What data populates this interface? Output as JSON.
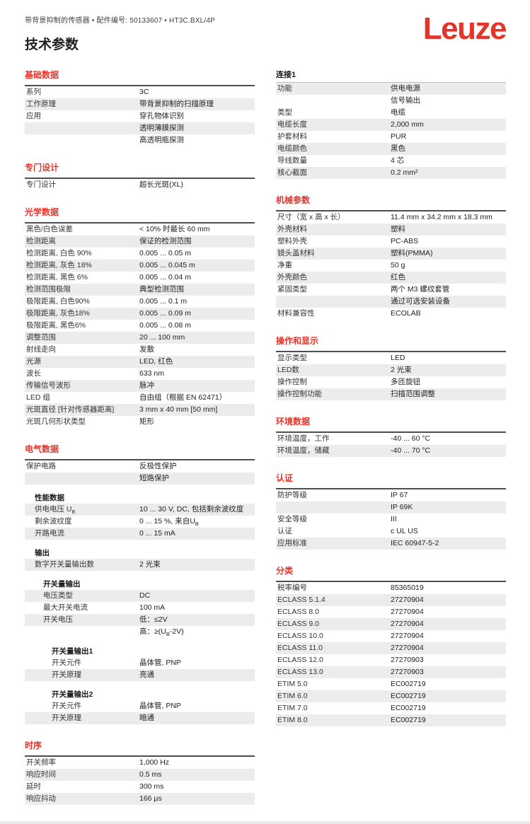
{
  "page": {
    "meta_line": "带背景抑制的传感器 • 配件编号: 50133607 • HT3C.BXL/4P",
    "title": "技术参数",
    "logo_text": "Leuze"
  },
  "colors": {
    "brand_red": "#e5352b",
    "stripe": "#ececec",
    "table_border": "#4e4e4e"
  },
  "columns": {
    "left": [
      {
        "name": "basic-data",
        "title": "基础数据",
        "style": "red",
        "blocks": [
          {
            "type": "row",
            "label": "系列",
            "value": "3C",
            "shade": false,
            "indent": 0
          },
          {
            "type": "row",
            "label": "工作原理",
            "value": "带背景抑制的扫描原理",
            "shade": true,
            "indent": 0
          },
          {
            "type": "row",
            "label": "应用",
            "value": "穿孔物体识别",
            "shade": false,
            "indent": 0
          },
          {
            "type": "row",
            "label": "",
            "value": "透明薄膜探测",
            "shade": true,
            "indent": 0
          },
          {
            "type": "row",
            "label": "",
            "value": "高透明瓶探测",
            "shade": false,
            "indent": 0
          }
        ]
      },
      {
        "name": "special-design",
        "title": "专门设计",
        "style": "red",
        "blocks": [
          {
            "type": "row",
            "label": "专门设计",
            "value": "超长光斑(XL)",
            "shade": false,
            "indent": 0
          }
        ]
      },
      {
        "name": "optical-data",
        "title": "光学数据",
        "style": "red",
        "blocks": [
          {
            "type": "row",
            "label": "黑色/白色误差",
            "value": "< 10% 时最长 60 mm",
            "shade": false,
            "indent": 0
          },
          {
            "type": "row",
            "label": "检测距离",
            "value": "保证的检测范围",
            "shade": true,
            "indent": 0
          },
          {
            "type": "row",
            "label": "检测距离, 白色 90%",
            "value": "0.005 ... 0.05 m",
            "shade": false,
            "indent": 0
          },
          {
            "type": "row",
            "label": "检测距离, 灰色 18%",
            "value": "0.005 ... 0.045 m",
            "shade": true,
            "indent": 0
          },
          {
            "type": "row",
            "label": "检测距离, 黑色 6%",
            "value": "0.005 ... 0.04 m",
            "shade": false,
            "indent": 0
          },
          {
            "type": "row",
            "label": "检测范围极限",
            "value": "典型检测范围",
            "shade": true,
            "indent": 0
          },
          {
            "type": "row",
            "label": "极限距离, 白色90%",
            "value": "0.005 ... 0.1 m",
            "shade": false,
            "indent": 0
          },
          {
            "type": "row",
            "label": "极限距离, 灰色18%",
            "value": "0.005 ... 0.09 m",
            "shade": true,
            "indent": 0
          },
          {
            "type": "row",
            "label": "极限距离, 黑色6%",
            "value": "0.005 ... 0.08 m",
            "shade": false,
            "indent": 0
          },
          {
            "type": "row",
            "label": "调整范围",
            "value": "20 ... 100 mm",
            "shade": true,
            "indent": 0
          },
          {
            "type": "row",
            "label": "射线走向",
            "value": "发散",
            "shade": false,
            "indent": 0
          },
          {
            "type": "row",
            "label": "光源",
            "value": "LED, 红色",
            "shade": true,
            "indent": 0
          },
          {
            "type": "row",
            "label": "波长",
            "value": "633 nm",
            "shade": false,
            "indent": 0
          },
          {
            "type": "row",
            "label": "传输信号波形",
            "value": "脉冲",
            "shade": true,
            "indent": 0
          },
          {
            "type": "row",
            "label": "LED 组",
            "value": "自由组（根据 EN 62471）",
            "shade": false,
            "indent": 0
          },
          {
            "type": "row",
            "label": "光斑直径 [针对传感器距离]",
            "value": "3 mm x 40 mm [50 mm]",
            "shade": true,
            "indent": 0
          },
          {
            "type": "row",
            "label": "光斑几何形状类型",
            "value": "矩形",
            "shade": false,
            "indent": 0
          }
        ]
      },
      {
        "name": "electrical-data",
        "title": "电气数据",
        "style": "red",
        "blocks": [
          {
            "type": "row",
            "label": "保护电路",
            "value": "反极性保护",
            "shade": false,
            "indent": 0
          },
          {
            "type": "row",
            "label": "",
            "value": "短路保护",
            "shade": true,
            "indent": 0
          },
          {
            "type": "gap"
          },
          {
            "type": "subheader",
            "text": "性能数据",
            "indent": 1
          },
          {
            "type": "row",
            "label": "供电电压 U_B",
            "value": "10 ... 30 V, DC, 包括剩余波纹度",
            "shade": true,
            "indent": 1
          },
          {
            "type": "row",
            "label": "剩余波纹度",
            "value": "0 ... 15 %, 来自U_B",
            "shade": false,
            "indent": 1
          },
          {
            "type": "row",
            "label": "开路电流",
            "value": "0 ... 15 mA",
            "shade": true,
            "indent": 1
          },
          {
            "type": "gap"
          },
          {
            "type": "subheader",
            "text": "输出",
            "indent": 1
          },
          {
            "type": "row",
            "label": "数字开关量输出数",
            "value": "2 光束",
            "shade": true,
            "indent": 1
          },
          {
            "type": "gap"
          },
          {
            "type": "subheader",
            "text": "开关量输出",
            "indent": 2
          },
          {
            "type": "row",
            "label": "电压类型",
            "value": "DC",
            "shade": true,
            "indent": 2
          },
          {
            "type": "row",
            "label": "最大开关电流",
            "value": "100 mA",
            "shade": false,
            "indent": 2
          },
          {
            "type": "row",
            "label": "开关电压",
            "value": "低：≤2V",
            "shade": true,
            "indent": 2
          },
          {
            "type": "row",
            "label": "",
            "value": "高：≥(U_B-2V)",
            "shade": false,
            "indent": 2
          },
          {
            "type": "gap"
          },
          {
            "type": "subheader",
            "text": "开关量输出1",
            "indent": 3
          },
          {
            "type": "row",
            "label": "开关元件",
            "value": "晶体管, PNP",
            "shade": false,
            "indent": 3
          },
          {
            "type": "row",
            "label": "开关原理",
            "value": "亮通",
            "shade": true,
            "indent": 3
          },
          {
            "type": "gap"
          },
          {
            "type": "subheader",
            "text": "开关量输出2",
            "indent": 3
          },
          {
            "type": "row",
            "label": "开关元件",
            "value": "晶体管, PNP",
            "shade": false,
            "indent": 3
          },
          {
            "type": "row",
            "label": "开关原理",
            "value": "暗通",
            "shade": true,
            "indent": 3
          }
        ]
      },
      {
        "name": "timing",
        "title": "时序",
        "style": "red",
        "blocks": [
          {
            "type": "row",
            "label": "开关频率",
            "value": "1,000 Hz",
            "shade": false,
            "indent": 0
          },
          {
            "type": "row",
            "label": "响应时间",
            "value": "0.5 ms",
            "shade": true,
            "indent": 0
          },
          {
            "type": "row",
            "label": "延时",
            "value": "300 ms",
            "shade": false,
            "indent": 0
          },
          {
            "type": "row",
            "label": "响应抖动",
            "value": "166 µs",
            "shade": true,
            "indent": 0
          }
        ]
      }
    ],
    "right": [
      {
        "name": "connection-1",
        "title": "连接1",
        "style": "plain",
        "blocks": [
          {
            "type": "row",
            "label": "功能",
            "value": "供电电源",
            "shade": true,
            "indent": 0
          },
          {
            "type": "row",
            "label": "",
            "value": "信号输出",
            "shade": false,
            "indent": 0
          },
          {
            "type": "row",
            "label": "类型",
            "value": "电缆",
            "shade": false,
            "indent": 0
          },
          {
            "type": "row",
            "label": "电缆长度",
            "value": "2,000 mm",
            "shade": true,
            "indent": 0
          },
          {
            "type": "row",
            "label": "护套材料",
            "value": "PUR",
            "shade": false,
            "indent": 0
          },
          {
            "type": "row",
            "label": "电缆颜色",
            "value": "黑色",
            "shade": true,
            "indent": 0
          },
          {
            "type": "row",
            "label": "导线数量",
            "value": "4 芯",
            "shade": false,
            "indent": 0
          },
          {
            "type": "row",
            "label": "核心截面",
            "value": "0.2 mm²",
            "shade": true,
            "indent": 0
          }
        ]
      },
      {
        "name": "mechanical-data",
        "title": "机械参数",
        "style": "red",
        "blocks": [
          {
            "type": "row",
            "label": "尺寸（宽 x 高 x 长）",
            "value": "11.4 mm x 34.2 mm x 18.3 mm",
            "shade": false,
            "indent": 0
          },
          {
            "type": "row",
            "label": "外壳材料",
            "value": "塑料",
            "shade": true,
            "indent": 0
          },
          {
            "type": "row",
            "label": "塑料外壳",
            "value": "PC-ABS",
            "shade": false,
            "indent": 0
          },
          {
            "type": "row",
            "label": "镜头盖材料",
            "value": "塑料(PMMA)",
            "shade": true,
            "indent": 0
          },
          {
            "type": "row",
            "label": "净重",
            "value": "50 g",
            "shade": false,
            "indent": 0
          },
          {
            "type": "row",
            "label": "外壳颜色",
            "value": "红色",
            "shade": true,
            "indent": 0
          },
          {
            "type": "row",
            "label": "紧固类型",
            "value": "两个 M3 螺纹套管",
            "shade": false,
            "indent": 0
          },
          {
            "type": "row",
            "label": "",
            "value": "通过可选安装设备",
            "shade": true,
            "indent": 0
          },
          {
            "type": "row",
            "label": "材料兼容性",
            "value": "ECOLAB",
            "shade": false,
            "indent": 0
          }
        ]
      },
      {
        "name": "operation-display",
        "title": "操作和显示",
        "style": "red",
        "blocks": [
          {
            "type": "row",
            "label": "显示类型",
            "value": "LED",
            "shade": false,
            "indent": 0
          },
          {
            "type": "row",
            "label": "LED数",
            "value": "2 光束",
            "shade": true,
            "indent": 0
          },
          {
            "type": "row",
            "label": "操作控制",
            "value": "多匝旋钮",
            "shade": false,
            "indent": 0
          },
          {
            "type": "row",
            "label": "操作控制功能",
            "value": "扫描范围调整",
            "shade": true,
            "indent": 0
          }
        ]
      },
      {
        "name": "environmental-data",
        "title": "环境数据",
        "style": "red",
        "blocks": [
          {
            "type": "row",
            "label": "环境温度，工作",
            "value": "-40 ... 60 °C",
            "shade": false,
            "indent": 0
          },
          {
            "type": "row",
            "label": "环境温度，储藏",
            "value": "-40 ... 70 °C",
            "shade": true,
            "indent": 0
          }
        ]
      },
      {
        "name": "certifications",
        "title": "认证",
        "style": "red",
        "blocks": [
          {
            "type": "row",
            "label": "防护等级",
            "value": "IP 67",
            "shade": false,
            "indent": 0
          },
          {
            "type": "row",
            "label": "",
            "value": "IP 69K",
            "shade": true,
            "indent": 0
          },
          {
            "type": "row",
            "label": "安全等级",
            "value": "III",
            "shade": false,
            "indent": 0
          },
          {
            "type": "row",
            "label": "认证",
            "value": "c UL US",
            "shade": false,
            "indent": 0
          },
          {
            "type": "row",
            "label": "应用标准",
            "value": "IEC 60947-5-2",
            "shade": true,
            "indent": 0
          }
        ]
      },
      {
        "name": "classification",
        "title": "分类",
        "style": "red",
        "blocks": [
          {
            "type": "row",
            "label": "税率编号",
            "value": "85365019",
            "shade": false,
            "indent": 0
          },
          {
            "type": "row",
            "label": "ECLASS 5.1.4",
            "value": "27270904",
            "shade": true,
            "indent": 0
          },
          {
            "type": "row",
            "label": "ECLASS 8.0",
            "value": "27270904",
            "shade": false,
            "indent": 0
          },
          {
            "type": "row",
            "label": "ECLASS 9.0",
            "value": "27270904",
            "shade": true,
            "indent": 0
          },
          {
            "type": "row",
            "label": "ECLASS 10.0",
            "value": "27270904",
            "shade": false,
            "indent": 0
          },
          {
            "type": "row",
            "label": "ECLASS 11.0",
            "value": "27270904",
            "shade": true,
            "indent": 0
          },
          {
            "type": "row",
            "label": "ECLASS 12.0",
            "value": "27270903",
            "shade": false,
            "indent": 0
          },
          {
            "type": "row",
            "label": "ECLASS 13.0",
            "value": "27270903",
            "shade": true,
            "indent": 0
          },
          {
            "type": "row",
            "label": "ETIM 5.0",
            "value": "EC002719",
            "shade": false,
            "indent": 0
          },
          {
            "type": "row",
            "label": "ETIM 6.0",
            "value": "EC002719",
            "shade": true,
            "indent": 0
          },
          {
            "type": "row",
            "label": "ETIM 7.0",
            "value": "EC002719",
            "shade": false,
            "indent": 0
          },
          {
            "type": "row",
            "label": "ETIM 8.0",
            "value": "EC002719",
            "shade": true,
            "indent": 0
          }
        ]
      }
    ]
  }
}
